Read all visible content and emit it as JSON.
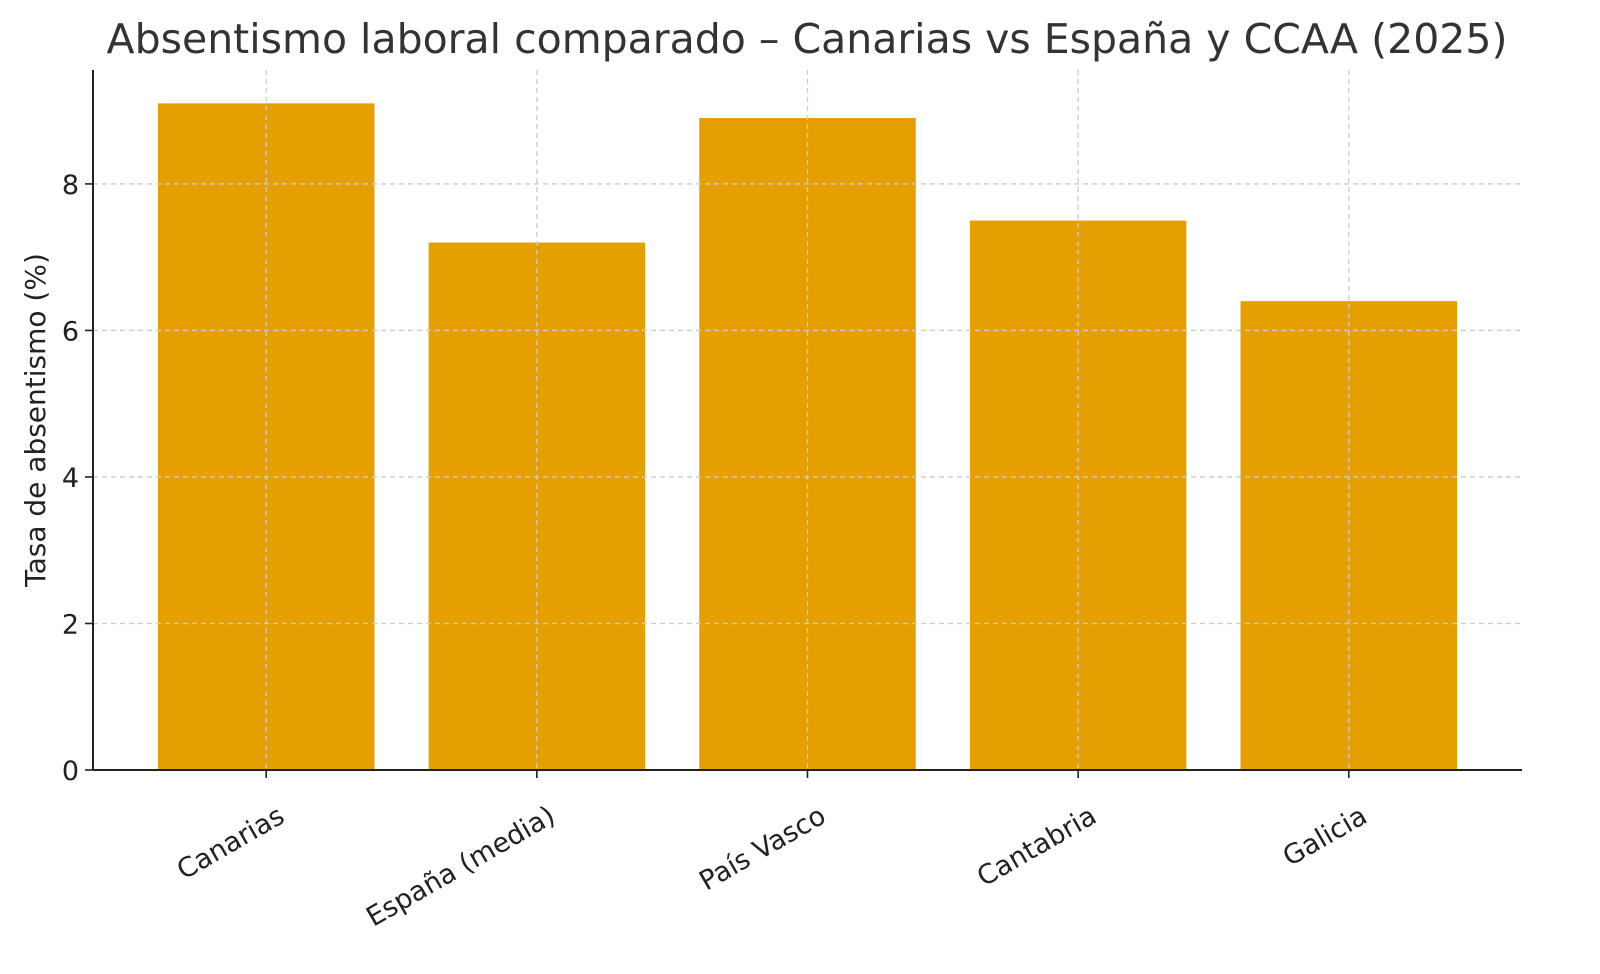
{
  "chart_data": {
    "type": "bar",
    "title": "Absentismo laboral comparado – Canarias vs España y CCAA (2025)",
    "xlabel": "",
    "ylabel": "Tasa de absentismo (%)",
    "categories": [
      "Canarias",
      "España (media)",
      "País Vasco",
      "Cantabria",
      "Galicia"
    ],
    "values": [
      9.1,
      7.2,
      8.9,
      7.5,
      6.4
    ],
    "ylim": [
      0,
      9.555
    ],
    "yticks": [
      0,
      2,
      4,
      6,
      8
    ],
    "grid": true,
    "bar_color": "#E5A000"
  }
}
